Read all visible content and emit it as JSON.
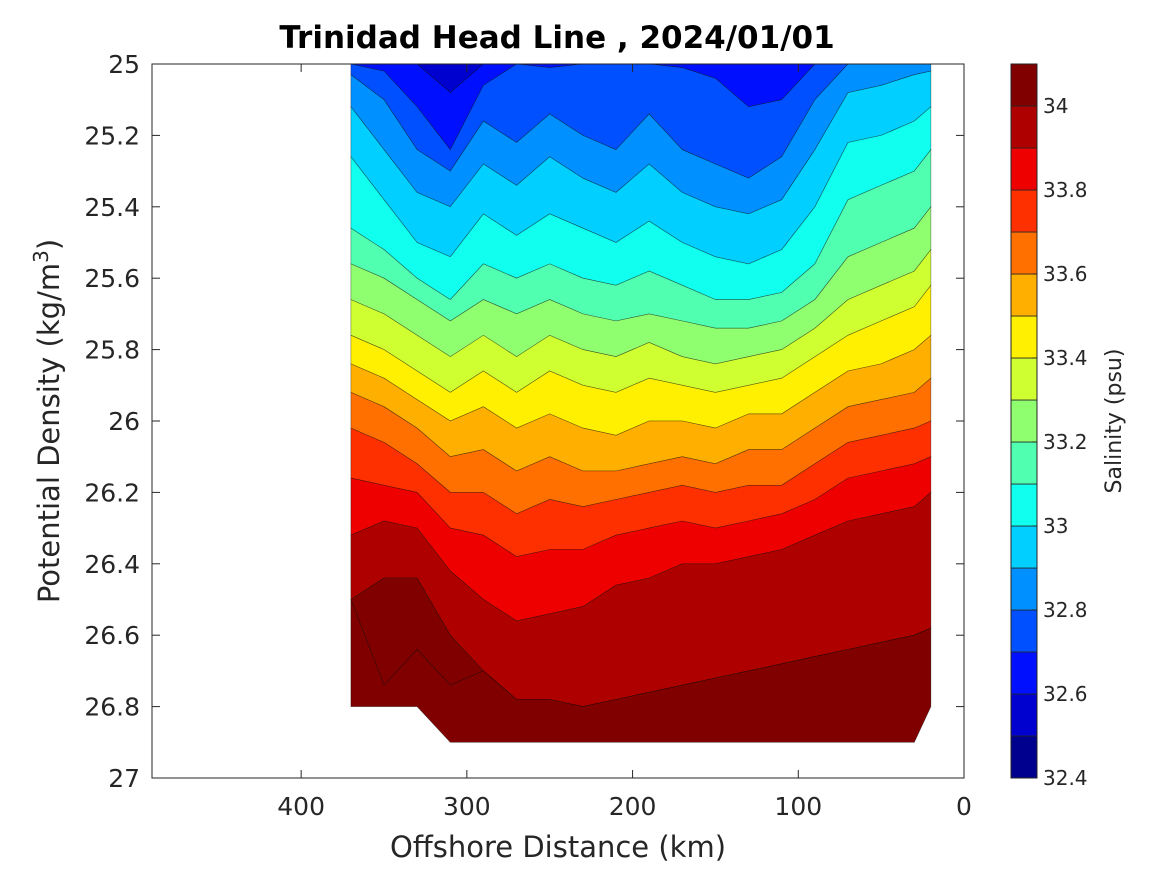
{
  "chart_data": {
    "type": "contour",
    "title": "Trinidad Head Line , 2024/01/01",
    "xlabel": "Offshore Distance (km)",
    "ylabel": "Potential Density (kg/m",
    "ylabel_superscript": "3",
    "ylabel_suffix": ")",
    "xlim": [
      490,
      0
    ],
    "ylim": [
      25,
      27
    ],
    "x_ticks": [
      400,
      300,
      200,
      100,
      0
    ],
    "y_ticks": [
      25,
      25.2,
      25.4,
      25.6,
      25.8,
      26,
      26.2,
      26.4,
      26.6,
      26.8,
      27
    ],
    "y_tick_labels": [
      "25",
      "25.2",
      "25.4",
      "25.6",
      "25.8",
      "26",
      "26.2",
      "26.4",
      "26.6",
      "26.8",
      "27"
    ],
    "colorbar": {
      "label": "Salinity (psu)",
      "range": [
        32.4,
        34.1
      ],
      "ticks": [
        32.4,
        32.6,
        32.8,
        33,
        33.2,
        33.4,
        33.6,
        33.8,
        34
      ],
      "tick_labels": [
        "32.4",
        "32.6",
        "32.8",
        "33",
        "33.2",
        "33.4",
        "33.6",
        "33.8",
        "34"
      ],
      "levels": [
        32.4,
        32.5,
        32.6,
        32.7,
        32.8,
        32.9,
        33.0,
        33.1,
        33.2,
        33.3,
        33.4,
        33.5,
        33.6,
        33.7,
        33.8,
        33.9,
        34.0,
        34.1
      ],
      "colors": [
        "#00008f",
        "#0000cf",
        "#0010ff",
        "#0050ff",
        "#0090ff",
        "#00cfff",
        "#10ffef",
        "#50ffaf",
        "#90ff6f",
        "#cfff30",
        "#ffef00",
        "#ffaf00",
        "#ff7000",
        "#ff3000",
        "#ef0000",
        "#af0000",
        "#800000"
      ]
    },
    "stations_km": [
      370,
      350,
      330,
      310,
      290,
      270,
      250,
      230,
      210,
      190,
      170,
      150,
      130,
      110,
      90,
      70,
      50,
      30,
      20
    ],
    "contours": [
      {
        "level": 32.6,
        "depth": [
          null,
          null,
          null,
          25.08,
          null,
          null,
          null,
          null,
          null,
          null,
          null,
          null,
          null,
          null,
          null,
          null,
          null,
          null,
          null
        ]
      },
      {
        "level": 32.7,
        "depth": [
          null,
          25.02,
          25.12,
          25.24,
          25.06,
          null,
          25.01,
          null,
          null,
          null,
          25.01,
          25.04,
          25.12,
          25.1,
          null,
          null,
          null,
          null,
          null
        ]
      },
      {
        "level": 32.8,
        "depth": [
          25.03,
          25.1,
          25.24,
          25.3,
          25.16,
          25.22,
          25.14,
          25.2,
          25.24,
          25.14,
          25.24,
          25.28,
          25.32,
          25.26,
          25.1,
          null,
          null,
          null,
          null
        ]
      },
      {
        "level": 32.9,
        "depth": [
          25.12,
          25.24,
          25.36,
          25.4,
          25.28,
          25.34,
          25.26,
          25.32,
          25.36,
          25.28,
          25.36,
          25.4,
          25.42,
          25.38,
          25.24,
          25.08,
          25.06,
          25.03,
          25.02
        ]
      },
      {
        "level": 33.0,
        "depth": [
          25.26,
          25.38,
          25.5,
          25.54,
          25.42,
          25.48,
          25.42,
          25.46,
          25.5,
          25.44,
          25.5,
          25.54,
          25.56,
          25.52,
          25.4,
          25.22,
          25.2,
          25.16,
          25.12
        ]
      },
      {
        "level": 33.1,
        "depth": [
          25.46,
          25.52,
          25.6,
          25.66,
          25.56,
          25.6,
          25.56,
          25.6,
          25.62,
          25.58,
          25.62,
          25.66,
          25.66,
          25.64,
          25.56,
          25.38,
          25.34,
          25.3,
          25.24
        ]
      },
      {
        "level": 33.2,
        "depth": [
          25.56,
          25.6,
          25.66,
          25.72,
          25.66,
          25.7,
          25.66,
          25.7,
          25.72,
          25.7,
          25.72,
          25.74,
          25.74,
          25.72,
          25.66,
          25.54,
          25.5,
          25.46,
          25.4
        ]
      },
      {
        "level": 33.3,
        "depth": [
          25.66,
          25.7,
          25.76,
          25.82,
          25.76,
          25.82,
          25.76,
          25.8,
          25.82,
          25.78,
          25.82,
          25.84,
          25.82,
          25.8,
          25.74,
          25.66,
          25.62,
          25.58,
          25.52
        ]
      },
      {
        "level": 33.4,
        "depth": [
          25.76,
          25.8,
          25.86,
          25.92,
          25.86,
          25.92,
          25.86,
          25.9,
          25.92,
          25.88,
          25.9,
          25.92,
          25.9,
          25.88,
          25.82,
          25.76,
          25.72,
          25.68,
          25.62
        ]
      },
      {
        "level": 33.5,
        "depth": [
          25.84,
          25.88,
          25.94,
          26.0,
          25.96,
          26.02,
          25.98,
          26.02,
          26.04,
          26.0,
          26.0,
          26.02,
          25.98,
          25.98,
          25.92,
          25.86,
          25.84,
          25.8,
          25.76
        ]
      },
      {
        "level": 33.6,
        "depth": [
          25.92,
          25.96,
          26.02,
          26.1,
          26.08,
          26.14,
          26.1,
          26.14,
          26.14,
          26.12,
          26.1,
          26.12,
          26.08,
          26.08,
          26.02,
          25.96,
          25.94,
          25.92,
          25.88
        ]
      },
      {
        "level": 33.7,
        "depth": [
          26.02,
          26.06,
          26.12,
          26.2,
          26.2,
          26.26,
          26.22,
          26.24,
          26.22,
          26.2,
          26.18,
          26.2,
          26.18,
          26.18,
          26.12,
          26.06,
          26.04,
          26.02,
          26.0
        ]
      },
      {
        "level": 33.8,
        "depth": [
          26.16,
          26.18,
          26.2,
          26.3,
          26.32,
          26.38,
          26.36,
          26.36,
          26.32,
          26.3,
          26.28,
          26.3,
          26.28,
          26.26,
          26.22,
          26.16,
          26.14,
          26.12,
          26.1
        ]
      },
      {
        "level": 33.9,
        "depth": [
          26.32,
          26.28,
          26.3,
          26.42,
          26.5,
          26.56,
          26.54,
          26.52,
          26.46,
          26.44,
          26.4,
          26.4,
          26.38,
          26.36,
          26.32,
          26.28,
          26.26,
          26.24,
          26.2
        ]
      },
      {
        "level": 34.0,
        "depth": [
          26.5,
          26.44,
          26.44,
          26.6,
          26.7,
          26.78,
          26.78,
          26.8,
          26.78,
          26.76,
          26.74,
          26.72,
          26.7,
          26.68,
          26.66,
          26.64,
          26.62,
          26.6,
          26.58
        ]
      },
      {
        "level": 34.1,
        "depth": [
          null,
          26.74,
          26.64,
          26.74,
          null,
          null,
          null,
          null,
          null,
          null,
          null,
          null,
          null,
          null,
          null,
          null,
          null,
          null,
          null
        ]
      }
    ]
  }
}
